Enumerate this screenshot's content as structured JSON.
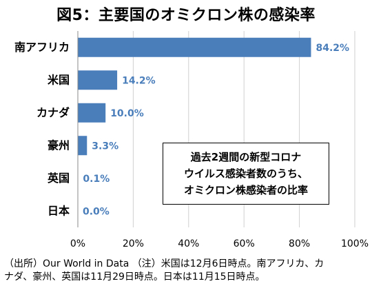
{
  "chart_data": {
    "type": "bar",
    "orientation": "horizontal",
    "title": "図5：主要国のオミクロン株の感染率",
    "categories": [
      "南アフリカ",
      "米国",
      "カナダ",
      "豪州",
      "英国",
      "日本"
    ],
    "values": [
      84.2,
      14.2,
      10.0,
      3.3,
      0.1,
      0.0
    ],
    "value_labels": [
      "84.2%",
      "14.2%",
      "10.0%",
      "3.3%",
      "0.1%",
      "0.0%"
    ],
    "xlim": [
      0,
      100
    ],
    "xticks": [
      0,
      20,
      40,
      60,
      80,
      100
    ],
    "xtick_labels": [
      "0%",
      "20%",
      "40%",
      "60%",
      "80%",
      "100%"
    ],
    "grid": true,
    "bar_color": "#4a7ebb",
    "label_color": "#4a7ebb",
    "annotation": [
      "過去2週間の新型コロナ",
      "ウイルス感染者数のうち、",
      "オミクロン株感染者の比率"
    ]
  },
  "source_note": [
    "（出所）Our World in Data （注）米国は12月6日時点。南アフリカ、カ",
    "ナダ、豪州、英国は11月29日時点。日本は11月15日時点。"
  ]
}
